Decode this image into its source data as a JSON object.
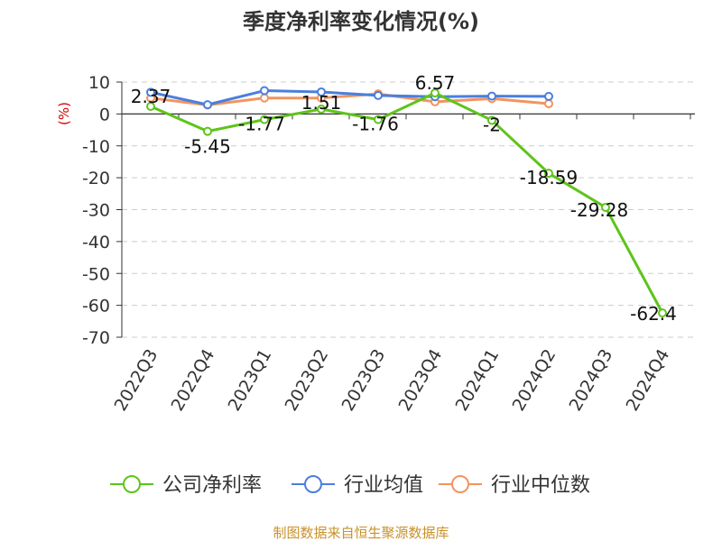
{
  "chart_data": {
    "type": "line",
    "title": "季度净利率变化情况(%)",
    "ylabel": "(%)",
    "xlabel": "",
    "categories": [
      "2022Q3",
      "2022Q4",
      "2023Q1",
      "2023Q2",
      "2023Q3",
      "2023Q4",
      "2024Q1",
      "2024Q2",
      "2024Q3",
      "2024Q4"
    ],
    "ylim": [
      -70,
      10
    ],
    "yticks": [
      10,
      0,
      -10,
      -20,
      -30,
      -40,
      -50,
      -60,
      -70
    ],
    "grid": true,
    "legend_position": "bottom",
    "series": [
      {
        "name": "公司净利率",
        "color": "#5ec41a",
        "values": [
          2.37,
          -5.45,
          -1.77,
          1.51,
          -1.76,
          6.57,
          -2,
          -18.59,
          -29.28,
          -62.4
        ],
        "labels": [
          "2.37",
          "-5.45",
          "-1.77",
          "1.51",
          "-1.76",
          "6.57",
          "-2",
          "-18.59",
          "-29.28",
          "-62.4"
        ]
      },
      {
        "name": "行业均值",
        "color": "#4a7fdf",
        "values": [
          6.8,
          2.9,
          7.3,
          6.9,
          5.8,
          5.4,
          5.6,
          5.5,
          null,
          null
        ]
      },
      {
        "name": "行业中位数",
        "color": "#f29460",
        "values": [
          5.0,
          2.8,
          5.0,
          5.0,
          6.3,
          3.8,
          4.8,
          3.2,
          null,
          null
        ]
      }
    ]
  },
  "source_note": "制图数据来自恒生聚源数据库"
}
